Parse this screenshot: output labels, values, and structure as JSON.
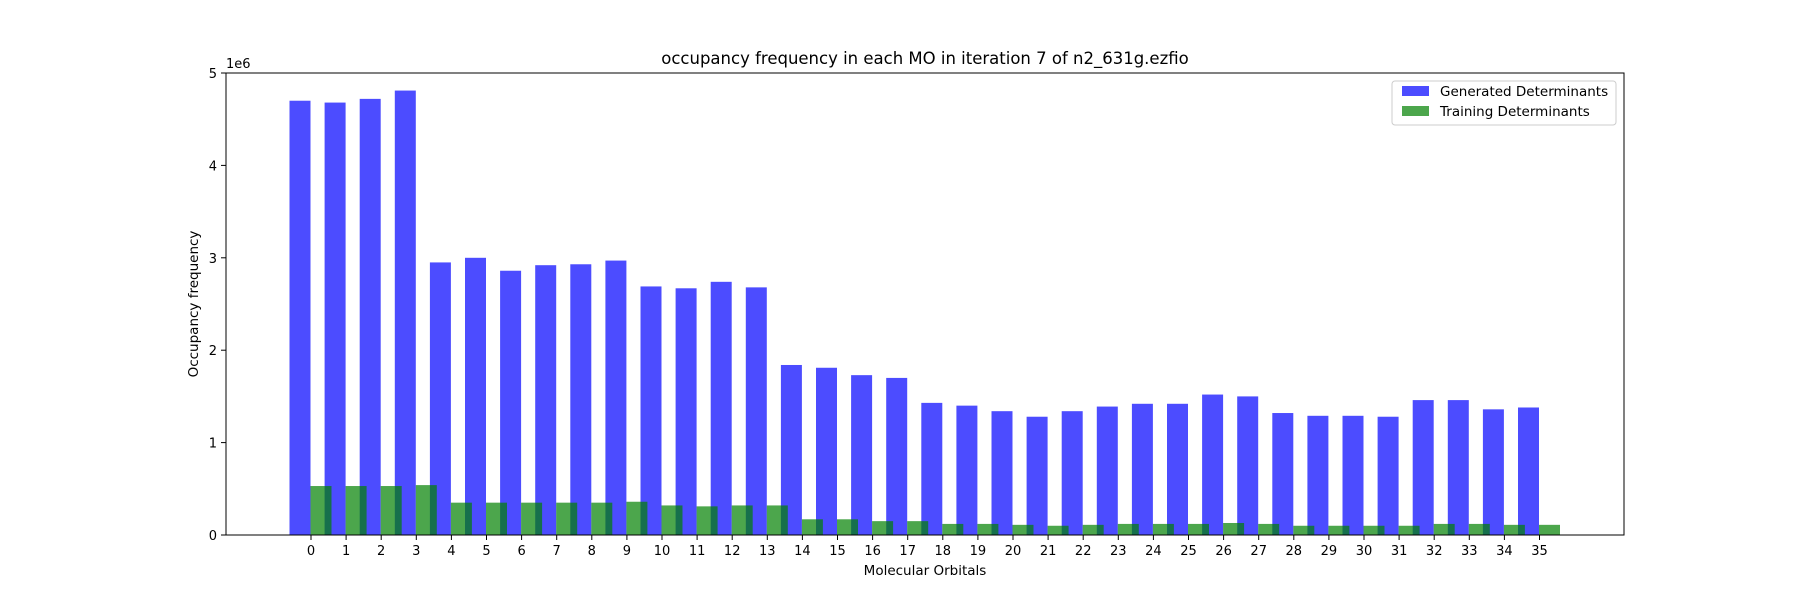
{
  "chart_data": {
    "type": "bar",
    "title": "occupancy frequency in each MO in iteration 7 of n2_631g.ezfio",
    "xlabel": "Molecular Orbitals",
    "ylabel": "Occupancy frequency",
    "y_multiplier_label": "1e6",
    "ylim": [
      0,
      5000000
    ],
    "yticks": [
      0,
      1000000,
      2000000,
      3000000,
      4000000,
      5000000
    ],
    "ytick_labels": [
      "0",
      "1",
      "2",
      "3",
      "4",
      "5"
    ],
    "grid": false,
    "legend_position": "top-right",
    "categories": [
      "0",
      "1",
      "2",
      "3",
      "4",
      "5",
      "6",
      "7",
      "8",
      "9",
      "10",
      "11",
      "12",
      "13",
      "14",
      "15",
      "16",
      "17",
      "18",
      "19",
      "20",
      "21",
      "22",
      "23",
      "24",
      "25",
      "26",
      "27",
      "28",
      "29",
      "30",
      "31",
      "32",
      "33",
      "34",
      "35"
    ],
    "series": [
      {
        "name": "Generated Determinants",
        "color": "#0000ff",
        "alpha": 0.7,
        "values": [
          4700000,
          4680000,
          4720000,
          4810000,
          2950000,
          3000000,
          2860000,
          2920000,
          2930000,
          2970000,
          2690000,
          2670000,
          2740000,
          2680000,
          1840000,
          1810000,
          1730000,
          1700000,
          1430000,
          1400000,
          1340000,
          1280000,
          1340000,
          1390000,
          1420000,
          1420000,
          1520000,
          1500000,
          1320000,
          1290000,
          1290000,
          1280000,
          1460000,
          1460000,
          1360000,
          1380000
        ]
      },
      {
        "name": "Training Determinants",
        "color": "#008000",
        "alpha": 0.7,
        "values": [
          530000,
          530000,
          530000,
          540000,
          350000,
          350000,
          350000,
          350000,
          350000,
          360000,
          320000,
          310000,
          320000,
          320000,
          170000,
          170000,
          150000,
          150000,
          120000,
          120000,
          110000,
          100000,
          110000,
          120000,
          120000,
          120000,
          130000,
          120000,
          100000,
          100000,
          100000,
          100000,
          120000,
          120000,
          110000,
          110000
        ]
      }
    ]
  }
}
